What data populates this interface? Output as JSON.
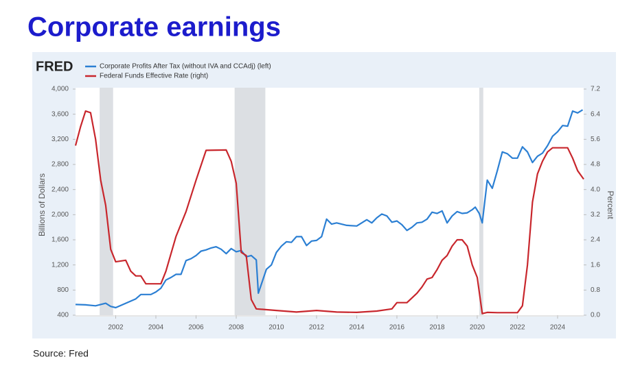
{
  "chart_data": {
    "type": "line",
    "title": "Corporate earnings",
    "source_logo": "FRED",
    "source": "Source: Fred",
    "y_label": "Billions of Dollars",
    "y2_label": "Percent",
    "xlim": [
      2000,
      2025.3
    ],
    "xticks": [
      2002,
      2004,
      2006,
      2008,
      2010,
      2012,
      2014,
      2016,
      2018,
      2020,
      2022,
      2024
    ],
    "ylim": [
      400,
      4000
    ],
    "yticks": [
      400,
      800,
      {
        "value": 1200,
        "label": "1,200"
      },
      {
        "value": 1600,
        "label": "1,600"
      },
      {
        "value": 2000,
        "label": "2,000"
      },
      {
        "value": 2400,
        "label": "2,400"
      },
      {
        "value": 2800,
        "label": "2,800"
      },
      {
        "value": 3200,
        "label": "3,200"
      },
      {
        "value": 3600,
        "label": "3,600"
      },
      {
        "value": 4000,
        "label": "4,000"
      }
    ],
    "y2lim": [
      0,
      7.2
    ],
    "y2ticks": [
      {
        "value": 0,
        "label": "0.0"
      },
      0.8,
      1.6,
      2.4,
      3.2,
      {
        "value": 4,
        "label": "4.0"
      },
      4.8,
      5.6,
      6.4,
      7.2
    ],
    "grid": false,
    "shaded_periods": [
      {
        "start": 2001.2,
        "end": 2001.87
      },
      {
        "start": 2007.92,
        "end": 2009.45
      },
      {
        "start": 2020.1,
        "end": 2020.3
      }
    ],
    "series": [
      {
        "name": "Corporate Profits After Tax (without IVA and CCAdj) (left)",
        "color": "#2b7fd3",
        "x": [
          2000.0,
          2000.5,
          2001.0,
          2001.5,
          2001.75,
          2002.0,
          2002.5,
          2003.0,
          2003.25,
          2003.75,
          2004.0,
          2004.25,
          2004.5,
          2004.75,
          2005.0,
          2005.25,
          2005.5,
          2005.75,
          2006.0,
          2006.25,
          2006.5,
          2006.75,
          2007.0,
          2007.25,
          2007.5,
          2007.75,
          2008.0,
          2008.25,
          2008.5,
          2008.75,
          2009.0,
          2009.1,
          2009.5,
          2009.75,
          2010.0,
          2010.25,
          2010.5,
          2010.75,
          2011.0,
          2011.25,
          2011.5,
          2011.75,
          2012.0,
          2012.25,
          2012.5,
          2012.75,
          2013.0,
          2013.5,
          2014.0,
          2014.5,
          2014.75,
          2015.0,
          2015.25,
          2015.5,
          2015.75,
          2016.0,
          2016.25,
          2016.5,
          2016.75,
          2017.0,
          2017.25,
          2017.5,
          2017.75,
          2018.0,
          2018.25,
          2018.5,
          2018.75,
          2019.0,
          2019.25,
          2019.5,
          2019.75,
          2019.9,
          2020.1,
          2020.25,
          2020.5,
          2020.75,
          2021.0,
          2021.25,
          2021.5,
          2021.75,
          2022.0,
          2022.25,
          2022.5,
          2022.75,
          2023.0,
          2023.25,
          2023.5,
          2023.75,
          2024.0,
          2024.25,
          2024.5,
          2024.75,
          2025.0,
          2025.25
        ],
        "values": [
          570,
          565,
          550,
          590,
          540,
          520,
          590,
          660,
          730,
          730,
          770,
          830,
          960,
          1000,
          1050,
          1050,
          1270,
          1300,
          1350,
          1420,
          1440,
          1470,
          1490,
          1450,
          1380,
          1460,
          1410,
          1430,
          1330,
          1350,
          1280,
          750,
          1130,
          1200,
          1400,
          1500,
          1570,
          1560,
          1650,
          1650,
          1510,
          1580,
          1590,
          1650,
          1930,
          1850,
          1870,
          1830,
          1820,
          1920,
          1870,
          1950,
          2010,
          1980,
          1880,
          1900,
          1840,
          1750,
          1800,
          1870,
          1880,
          1930,
          2040,
          2020,
          2060,
          1870,
          1980,
          2050,
          2020,
          2030,
          2080,
          2120,
          2020,
          1870,
          2550,
          2420,
          2700,
          3000,
          2970,
          2900,
          2900,
          3080,
          3000,
          2830,
          2930,
          2980,
          3100,
          3250,
          3320,
          3420,
          3410,
          3650,
          3620,
          3670
        ]
      },
      {
        "name": "Federal Funds Effective Rate (right)",
        "color": "#c8262c",
        "axis": "y2",
        "x": [
          2000.0,
          2000.25,
          2000.5,
          2000.75,
          2001.0,
          2001.25,
          2001.5,
          2001.75,
          2002.0,
          2002.5,
          2002.75,
          2003.0,
          2003.25,
          2003.5,
          2004.25,
          2004.5,
          2005.0,
          2005.5,
          2006.0,
          2006.5,
          2007.5,
          2007.75,
          2008.0,
          2008.25,
          2008.5,
          2008.75,
          2009.0,
          2010.0,
          2011.0,
          2012.0,
          2013.0,
          2014.0,
          2015.0,
          2015.75,
          2016.0,
          2016.5,
          2017.0,
          2017.25,
          2017.5,
          2017.75,
          2018.0,
          2018.25,
          2018.5,
          2018.75,
          2019.0,
          2019.25,
          2019.5,
          2019.75,
          2020.0,
          2020.25,
          2020.5,
          2021.0,
          2021.5,
          2022.0,
          2022.25,
          2022.5,
          2022.75,
          2023.0,
          2023.25,
          2023.5,
          2023.75,
          2024.5,
          2024.75,
          2025.0,
          2025.3
        ],
        "values": [
          5.4,
          6.0,
          6.5,
          6.45,
          5.6,
          4.3,
          3.5,
          2.1,
          1.7,
          1.75,
          1.4,
          1.25,
          1.25,
          1.0,
          1.0,
          1.4,
          2.5,
          3.3,
          4.3,
          5.25,
          5.26,
          4.9,
          4.2,
          2.0,
          1.9,
          0.5,
          0.2,
          0.15,
          0.1,
          0.15,
          0.1,
          0.09,
          0.13,
          0.2,
          0.4,
          0.4,
          0.7,
          0.9,
          1.15,
          1.2,
          1.45,
          1.75,
          1.9,
          2.2,
          2.4,
          2.4,
          2.2,
          1.6,
          1.2,
          0.05,
          0.09,
          0.08,
          0.08,
          0.08,
          0.3,
          1.6,
          3.6,
          4.5,
          4.9,
          5.2,
          5.33,
          5.33,
          5.0,
          4.6,
          4.33
        ]
      }
    ]
  }
}
